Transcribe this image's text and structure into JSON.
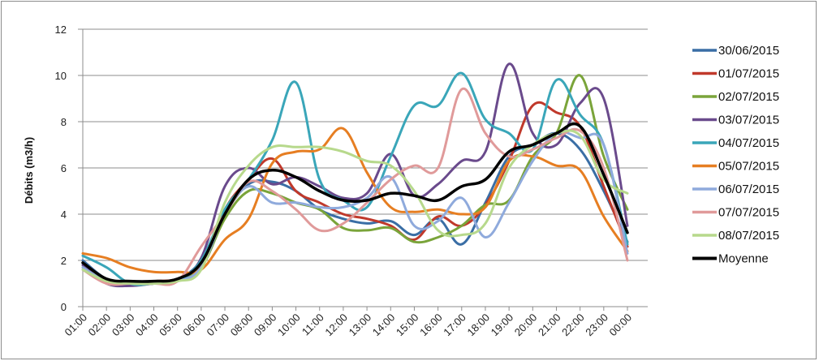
{
  "chart_data": {
    "type": "line",
    "title": "",
    "xlabel": "",
    "ylabel": "Débits (m3/h)",
    "ylim": [
      0,
      12
    ],
    "yticks": [
      0,
      2,
      4,
      6,
      8,
      10,
      12
    ],
    "grid": "horizontal",
    "legend_position": "right",
    "categories": [
      "01:00",
      "02:00",
      "03:00",
      "04:00",
      "05:00",
      "06:00",
      "07:00",
      "08:00",
      "09:00",
      "10:00",
      "11:00",
      "12:00",
      "13:00",
      "14:00",
      "15:00",
      "16:00",
      "17:00",
      "18:00",
      "19:00",
      "20:00",
      "21:00",
      "22:00",
      "23:00",
      "00:00"
    ],
    "series": [
      {
        "name": "30/06/2015",
        "color": "#3a6ea5",
        "width": 3,
        "values": [
          2.0,
          1.2,
          1.1,
          1.1,
          1.2,
          2.0,
          4.0,
          5.3,
          5.4,
          5.0,
          4.2,
          3.8,
          3.6,
          3.7,
          3.1,
          3.8,
          2.7,
          4.5,
          6.5,
          7.0,
          7.5,
          6.8,
          5.0,
          2.8
        ]
      },
      {
        "name": "01/07/2015",
        "color": "#c0392b",
        "width": 3,
        "values": [
          1.9,
          1.2,
          1.0,
          1.1,
          1.2,
          1.8,
          4.2,
          5.5,
          6.4,
          5.0,
          4.5,
          4.0,
          3.8,
          3.5,
          2.9,
          3.9,
          3.5,
          4.4,
          6.3,
          8.7,
          8.4,
          7.8,
          5.2,
          2.6
        ]
      },
      {
        "name": "02/07/2015",
        "color": "#7aa43a",
        "width": 3,
        "values": [
          1.7,
          1.1,
          1.0,
          1.0,
          1.2,
          1.7,
          3.8,
          5.0,
          4.9,
          4.5,
          4.2,
          3.4,
          3.3,
          3.4,
          2.8,
          3.0,
          3.5,
          4.4,
          4.6,
          6.5,
          7.5,
          10.0,
          6.5,
          4.2
        ]
      },
      {
        "name": "03/07/2015",
        "color": "#6a4a8c",
        "width": 3,
        "values": [
          1.8,
          1.0,
          0.9,
          1.0,
          1.1,
          2.1,
          5.2,
          6.0,
          5.3,
          5.6,
          5.2,
          4.7,
          4.9,
          6.6,
          4.8,
          5.3,
          6.3,
          6.7,
          10.5,
          7.5,
          7.0,
          8.8,
          9.0,
          3.5
        ]
      },
      {
        "name": "04/07/2015",
        "color": "#3aa6b9",
        "width": 3,
        "values": [
          2.2,
          1.7,
          1.0,
          1.0,
          1.1,
          2.0,
          4.2,
          5.5,
          7.2,
          9.7,
          5.5,
          4.6,
          4.3,
          6.5,
          8.7,
          8.7,
          10.1,
          8.1,
          7.5,
          6.8,
          9.8,
          8.3,
          7.0,
          2.7
        ]
      },
      {
        "name": "05/07/2015",
        "color": "#e67e22",
        "width": 3,
        "values": [
          2.3,
          2.1,
          1.7,
          1.5,
          1.5,
          1.6,
          2.9,
          3.8,
          6.2,
          6.7,
          6.8,
          7.7,
          5.8,
          4.3,
          4.1,
          4.2,
          4.0,
          4.3,
          6.3,
          6.5,
          6.1,
          5.9,
          3.9,
          2.4
        ]
      },
      {
        "name": "06/07/2015",
        "color": "#8faadc",
        "width": 3,
        "values": [
          1.7,
          1.1,
          1.0,
          1.0,
          1.1,
          1.7,
          4.0,
          5.2,
          4.5,
          4.5,
          4.3,
          4.3,
          4.7,
          5.6,
          3.5,
          3.7,
          4.7,
          3.0,
          4.5,
          6.3,
          7.5,
          7.3,
          7.0,
          2.3
        ]
      },
      {
        "name": "07/07/2015",
        "color": "#e09a9a",
        "width": 3,
        "values": [
          1.6,
          1.0,
          1.0,
          1.0,
          1.1,
          2.6,
          4.0,
          5.4,
          5.0,
          4.2,
          3.3,
          3.6,
          4.5,
          5.5,
          6.1,
          6.0,
          9.4,
          7.5,
          6.5,
          6.8,
          7.3,
          7.6,
          6.0,
          2.0
        ]
      },
      {
        "name": "08/07/2015",
        "color": "#b7d98c",
        "width": 3,
        "values": [
          1.6,
          1.1,
          1.0,
          1.0,
          1.1,
          1.6,
          4.5,
          6.1,
          6.9,
          6.9,
          6.9,
          6.7,
          6.3,
          6.1,
          5.0,
          3.3,
          3.1,
          3.6,
          6.0,
          7.0,
          7.5,
          7.4,
          5.5,
          4.9
        ]
      },
      {
        "name": "Moyenne",
        "color": "#000000",
        "width": 3.5,
        "values": [
          1.9,
          1.2,
          1.1,
          1.1,
          1.2,
          1.9,
          4.0,
          5.5,
          5.9,
          5.6,
          5.0,
          4.6,
          4.6,
          4.9,
          4.8,
          4.6,
          5.2,
          5.5,
          6.7,
          7.0,
          7.5,
          7.8,
          5.7,
          3.2
        ]
      }
    ]
  }
}
